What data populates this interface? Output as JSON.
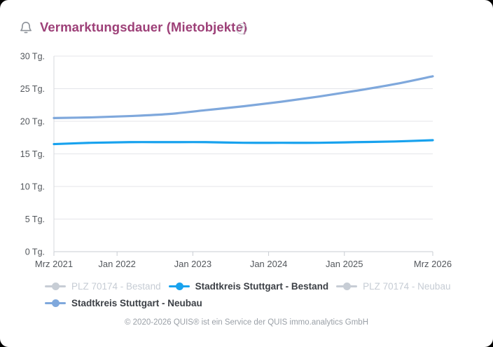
{
  "header": {
    "title": "Vermarktungsdauer (Mietobjekte)",
    "help_glyph": "?"
  },
  "colors": {
    "title": "#9d4078",
    "grid": "#e4e5ea",
    "axis": "#c9cdd3",
    "left_border": "#d7dade",
    "tick_text": "#53575c",
    "active_blue": "#18a2ee",
    "light_blue": "#7fa8dc",
    "disabled_gray": "#c7cdd5"
  },
  "chart_data": {
    "type": "line",
    "title": "Vermarktungsdauer (Mietobjekte)",
    "y_unit": "Tg.",
    "ylim": [
      0,
      30
    ],
    "y_ticks": [
      0,
      5,
      10,
      15,
      20,
      25,
      30
    ],
    "y_tick_labels": [
      "0 Tg.",
      "5 Tg.",
      "10 Tg.",
      "15 Tg.",
      "20 Tg.",
      "25 Tg.",
      "30 Tg."
    ],
    "x_tick_labels": [
      "Mrz 2021",
      "Jan 2022",
      "Jan 2023",
      "Jan 2024",
      "Jan 2025",
      "Mrz 2026"
    ],
    "x_tick_months": [
      0,
      10,
      22,
      34,
      46,
      60
    ],
    "x_range_months": [
      0,
      60
    ],
    "sample_months": [
      0,
      6,
      12,
      18,
      24,
      30,
      36,
      42,
      48,
      54,
      60
    ],
    "grid": "horizontal",
    "legend_position": "bottom",
    "series": [
      {
        "name": "PLZ 70174 - Bestand",
        "color": "#c7cdd5",
        "visible": false,
        "values": []
      },
      {
        "name": "Stadtkreis Stuttgart - Bestand",
        "color": "#18a2ee",
        "visible": true,
        "values": [
          16.5,
          16.7,
          16.8,
          16.8,
          16.8,
          16.7,
          16.7,
          16.7,
          16.8,
          16.9,
          17.1
        ]
      },
      {
        "name": "PLZ 70174 - Neubau",
        "color": "#c7cdd5",
        "visible": false,
        "values": []
      },
      {
        "name": "Stadtkreis Stuttgart - Neubau",
        "color": "#7fa8dc",
        "visible": true,
        "values": [
          20.5,
          20.6,
          20.8,
          21.1,
          21.7,
          22.3,
          23.0,
          23.8,
          24.7,
          25.7,
          26.9
        ]
      }
    ]
  },
  "footer": {
    "copyright": "© 2020-2026 QUIS® ist ein Service der QUIS immo.analytics GmbH"
  }
}
